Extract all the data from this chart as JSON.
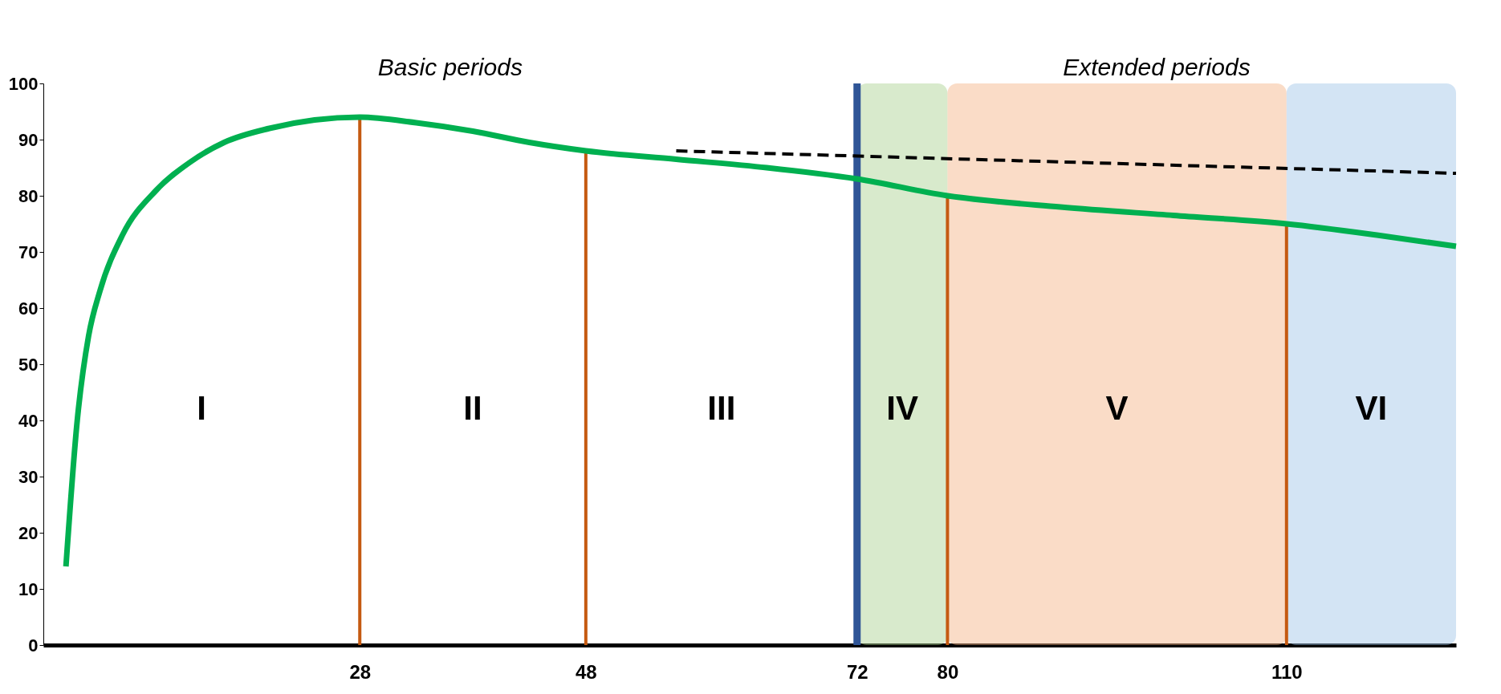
{
  "chart_data": {
    "type": "line",
    "xlim": [
      0,
      125
    ],
    "xticks": [
      28,
      48,
      72,
      80,
      110
    ],
    "ylim": [
      0,
      100
    ],
    "yticks": [
      0,
      10,
      20,
      30,
      40,
      50,
      60,
      70,
      80,
      90,
      100
    ],
    "grid": false,
    "marker": "none",
    "series": [
      {
        "color": "#00b050",
        "x": [
          2,
          3,
          4,
          5,
          7,
          10,
          13,
          16,
          20,
          24,
          28,
          33,
          38,
          43,
          48,
          56,
          64,
          72,
          80,
          90,
          100,
          110,
          118,
          125
        ],
        "values": [
          14,
          40,
          55,
          63,
          73,
          81,
          86,
          89.5,
          92,
          93.5,
          94,
          93,
          91.5,
          89.5,
          88,
          86.5,
          85,
          83,
          80,
          78,
          76.5,
          75,
          73,
          71
        ]
      },
      {
        "color": "#000000",
        "line_style": "dashed",
        "x": [
          56,
          125
        ],
        "values": [
          88,
          84
        ]
      }
    ],
    "ref_lines": [
      {
        "axis": "x",
        "value": 28,
        "color": "#c55a11"
      },
      {
        "axis": "x",
        "value": 48,
        "color": "#c55a11"
      },
      {
        "axis": "x",
        "value": 72,
        "color": "#2f5597"
      },
      {
        "axis": "x",
        "value": 80,
        "color": "#c55a11"
      },
      {
        "axis": "x",
        "value": 110,
        "color": "#c55a11"
      }
    ],
    "bands": [
      {
        "axis": "x",
        "from": 72,
        "to": 80,
        "color": "#a9d18e"
      },
      {
        "axis": "x",
        "from": 80,
        "to": 110,
        "color": "#f4b183"
      },
      {
        "axis": "x",
        "from": 110,
        "to": 125,
        "color": "#9dc3e6"
      }
    ],
    "annotations": [
      "Basic periods",
      "Extended periods",
      "I",
      "II",
      "III",
      "IV",
      "V",
      "VI"
    ]
  }
}
